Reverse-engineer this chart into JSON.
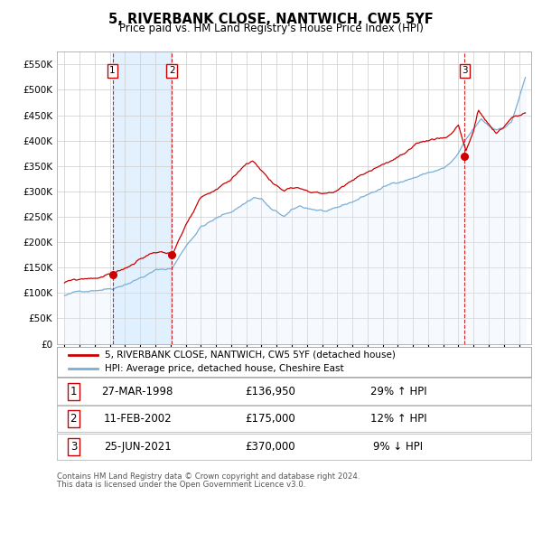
{
  "title": "5, RIVERBANK CLOSE, NANTWICH, CW5 5YF",
  "subtitle": "Price paid vs. HM Land Registry's House Price Index (HPI)",
  "property_line_color": "#cc0000",
  "hpi_line_color": "#7bafd4",
  "hpi_fill_color": "#ddeeff",
  "background_color": "#ffffff",
  "grid_color": "#cccccc",
  "sale_dates": [
    "1998-03-27",
    "2002-02-11",
    "2021-06-25"
  ],
  "sale_prices": [
    136950,
    175000,
    370000
  ],
  "sale_labels": [
    "1",
    "2",
    "3"
  ],
  "vline_color": "#cc0000",
  "shade_color": "#ddeeff",
  "ylim": [
    0,
    575000
  ],
  "yticks": [
    0,
    50000,
    100000,
    150000,
    200000,
    250000,
    300000,
    350000,
    400000,
    450000,
    500000,
    550000
  ],
  "ytick_labels": [
    "£0",
    "£50K",
    "£100K",
    "£150K",
    "£200K",
    "£250K",
    "£300K",
    "£350K",
    "£400K",
    "£450K",
    "£500K",
    "£550K"
  ],
  "legend_line1": "5, RIVERBANK CLOSE, NANTWICH, CW5 5YF (detached house)",
  "legend_line2": "HPI: Average price, detached house, Cheshire East",
  "table_rows": [
    {
      "label": "1",
      "date": "27-MAR-1998",
      "price": "£136,950",
      "change": "29% ↑ HPI"
    },
    {
      "label": "2",
      "date": "11-FEB-2002",
      "price": "£175,000",
      "change": "12% ↑ HPI"
    },
    {
      "label": "3",
      "date": "25-JUN-2021",
      "price": "£370,000",
      "change": "9% ↓ HPI"
    }
  ],
  "footer_line1": "Contains HM Land Registry data © Crown copyright and database right 2024.",
  "footer_line2": "This data is licensed under the Open Government Licence v3.0.",
  "xlim_start": 1994.5,
  "xlim_end": 2025.8
}
